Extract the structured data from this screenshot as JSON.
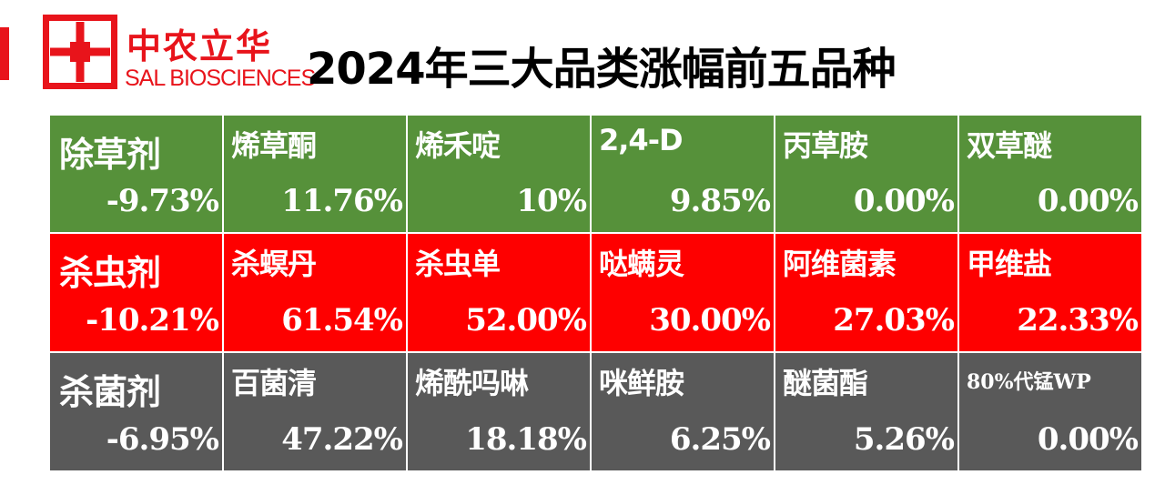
{
  "header": {
    "logo_cn": "中农立华",
    "logo_en": "SAL BIOSCIENCES",
    "title": "2024年三大品类涨幅前五品种"
  },
  "colors": {
    "accent": "#e8141b",
    "herbicide_row": "#56913a",
    "insecticide_row": "#fe0000",
    "fungicide_row": "#595959"
  },
  "rows": [
    {
      "category": "除草剂",
      "category_value": "-9.73%",
      "items": [
        {
          "name": "烯草酮",
          "value": "11.76%"
        },
        {
          "name": "烯禾啶",
          "value": "10%"
        },
        {
          "name": "2,4-D",
          "value": "9.85%"
        },
        {
          "name": "丙草胺",
          "value": "0.00%"
        },
        {
          "name": "双草醚",
          "value": "0.00%"
        }
      ]
    },
    {
      "category": "杀虫剂",
      "category_value": "-10.21%",
      "items": [
        {
          "name": "杀螟丹",
          "value": "61.54%"
        },
        {
          "name": "杀虫单",
          "value": "52.00%"
        },
        {
          "name": "哒螨灵",
          "value": "30.00%"
        },
        {
          "name": "阿维菌素",
          "value": "27.03%"
        },
        {
          "name": "甲维盐",
          "value": "22.33%"
        }
      ]
    },
    {
      "category": "杀菌剂",
      "category_value": "-6.95%",
      "items": [
        {
          "name": "百菌清",
          "value": "47.22%"
        },
        {
          "name": "烯酰吗啉",
          "value": "18.18%"
        },
        {
          "name": "咪鲜胺",
          "value": "6.25%"
        },
        {
          "name": "醚菌酯",
          "value": "5.26%"
        },
        {
          "name": "80%代锰WP",
          "value": "0.00%"
        }
      ]
    }
  ]
}
